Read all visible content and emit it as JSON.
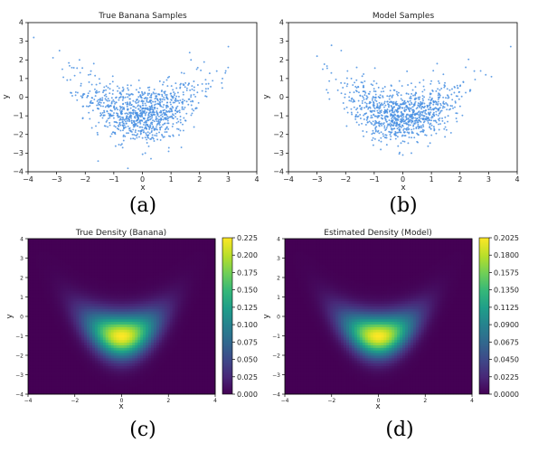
{
  "captions": [
    "(a)",
    "(b)",
    "(c)",
    "(d)"
  ],
  "colors": {
    "scatter_point": "#4a90e2",
    "viridis_low": "#440154",
    "viridis_mid": "#21918c",
    "viridis_high": "#fde725"
  },
  "chart_data": [
    {
      "id": "a",
      "type": "scatter",
      "title": "True Banana Samples",
      "xlabel": "x",
      "ylabel": "y",
      "xlim": [
        -4,
        4
      ],
      "ylim": [
        -4,
        4
      ],
      "xticks": [
        -4,
        -3,
        -2,
        -1,
        0,
        1,
        2,
        3,
        4
      ],
      "yticks": [
        -4,
        -3,
        -2,
        -1,
        0,
        1,
        2,
        3,
        4
      ],
      "grid": false,
      "series": [
        {
          "n_points": 1000,
          "distribution": "banana",
          "x_mean": 0,
          "x_std": 1,
          "y_std": 0.75,
          "y_offset": -1,
          "curvature": 0.3,
          "x": [
            -3.8,
            -2.9,
            -2.8,
            -2.2,
            -1.7,
            -1.8,
            1.7,
            1.9,
            2.6,
            2.8,
            2.9,
            0.1,
            0.3
          ],
          "y": [
            3.2,
            2.5,
            1.5,
            2.0,
            1.8,
            1.4,
            2.0,
            1.5,
            1.4,
            1.0,
            1.3,
            -3.0,
            -3.3
          ]
        }
      ]
    },
    {
      "id": "b",
      "type": "scatter",
      "title": "Model Samples",
      "xlabel": "x",
      "ylabel": "y",
      "xlim": [
        -4,
        4
      ],
      "ylim": [
        -4,
        4
      ],
      "xticks": [
        -4,
        -3,
        -2,
        -1,
        0,
        1,
        2,
        3,
        4
      ],
      "yticks": [
        -4,
        -3,
        -2,
        -1,
        0,
        1,
        2,
        3,
        4
      ],
      "grid": false,
      "series": [
        {
          "n_points": 1000,
          "distribution": "banana",
          "x_mean": 0,
          "x_std": 1,
          "y_std": 0.7,
          "y_offset": -1,
          "curvature": 0.3,
          "x": [
            -3.0,
            -2.8,
            -2.5,
            -1.8,
            1.2,
            2.2,
            2.5,
            2.9,
            3.1,
            0.0,
            0.3
          ],
          "y": [
            2.2,
            1.5,
            1.3,
            1.0,
            1.8,
            1.6,
            1.4,
            1.2,
            1.1,
            -3.1,
            -3.0
          ]
        }
      ]
    },
    {
      "id": "c",
      "type": "heatmap",
      "title": "True Density (Banana)",
      "xlabel": "x",
      "ylabel": "y",
      "xlim": [
        -4,
        4
      ],
      "ylim": [
        -4,
        4
      ],
      "xticks": [
        -4,
        -2,
        0,
        2,
        4
      ],
      "yticks": [
        -4,
        -3,
        -2,
        -1,
        0,
        1,
        2,
        3,
        4
      ],
      "density": {
        "peak_x": 0,
        "peak_y": -1,
        "x_std": 1,
        "y_std": 0.75,
        "curvature": 0.3
      },
      "colormap": "viridis",
      "colorbar": {
        "min": 0,
        "max": 0.225,
        "ticks": [
          "0.000",
          "0.025",
          "0.050",
          "0.075",
          "0.100",
          "0.125",
          "0.150",
          "0.175",
          "0.200",
          "0.225"
        ]
      }
    },
    {
      "id": "d",
      "type": "heatmap",
      "title": "Estimated Density (Model)",
      "xlabel": "x",
      "ylabel": "y",
      "xlim": [
        -4,
        4
      ],
      "ylim": [
        -4,
        4
      ],
      "xticks": [
        -4,
        -2,
        0,
        2,
        4
      ],
      "yticks": [
        -4,
        -3,
        -2,
        -1,
        0,
        1,
        2,
        3,
        4
      ],
      "density": {
        "peak_x": 0,
        "peak_y": -1,
        "x_std": 1,
        "y_std": 0.72,
        "curvature": 0.3
      },
      "colormap": "viridis",
      "colorbar": {
        "min": 0,
        "max": 0.2025,
        "ticks": [
          "0.0000",
          "0.0225",
          "0.0450",
          "0.0675",
          "0.0900",
          "0.1125",
          "0.1350",
          "0.1575",
          "0.1800",
          "0.2025"
        ]
      }
    }
  ]
}
